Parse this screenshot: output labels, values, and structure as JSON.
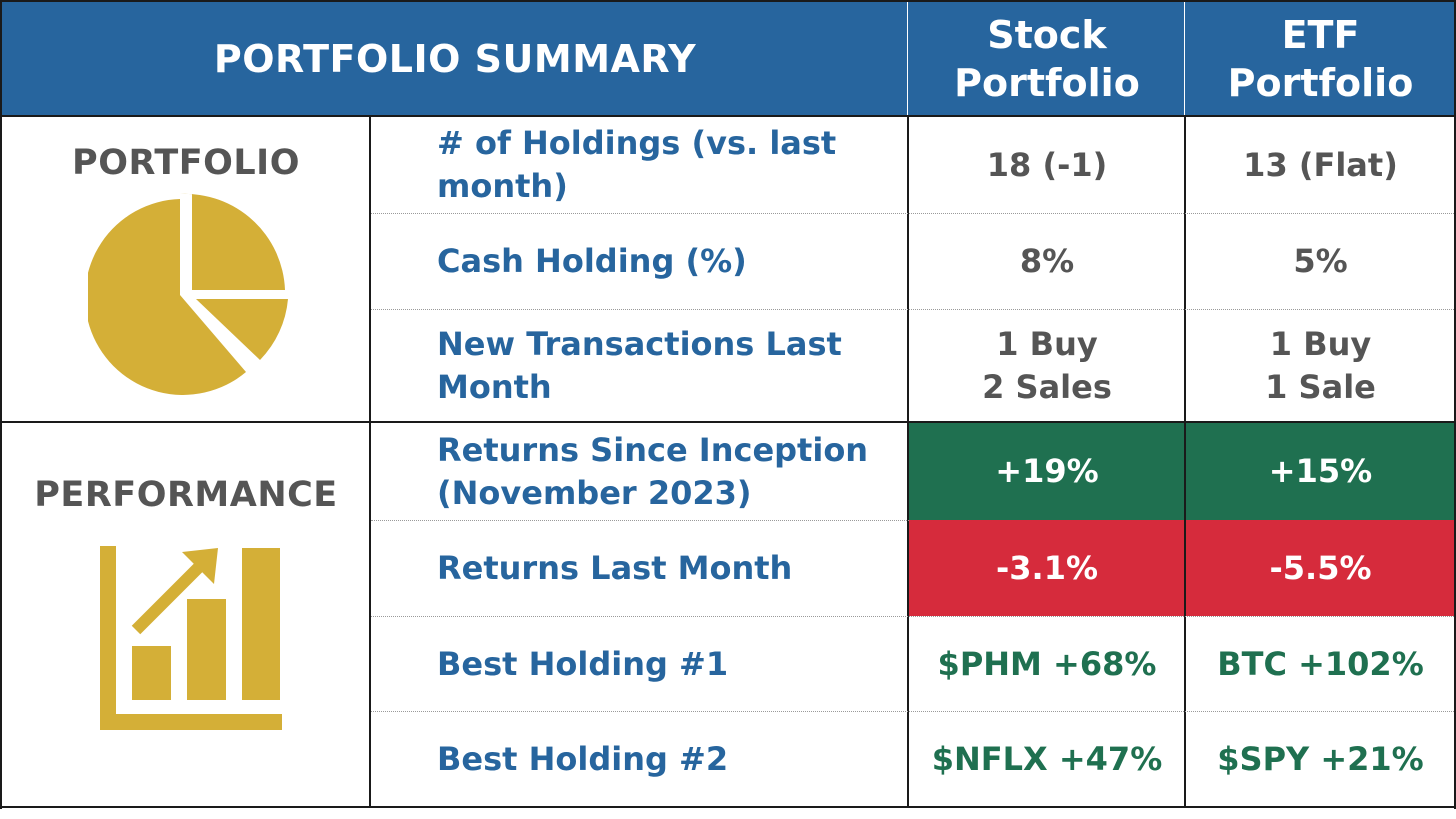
{
  "header": {
    "title": "PORTFOLIO SUMMARY",
    "col_stock": "Stock\nPortfolio",
    "col_etf": "ETF\nPortfolio"
  },
  "sections": {
    "portfolio": "PORTFOLIO",
    "performance": "PERFORMANCE"
  },
  "rows": [
    {
      "label": "# of Holdings (vs. last month)",
      "stock": "18 (-1)",
      "etf": "13 (Flat)"
    },
    {
      "label": "Cash Holding (%)",
      "stock": "8%",
      "etf": "5%"
    },
    {
      "label": "New Transactions Last Month",
      "stock": "1 Buy\n2 Sales",
      "etf": "1 Buy\n1 Sale"
    },
    {
      "label": "Returns Since Inception (November 2023)",
      "stock": "+19%",
      "etf": "+15%"
    },
    {
      "label": "Returns Last Month",
      "stock": "-3.1%",
      "etf": "-5.5%"
    },
    {
      "label": "Best Holding #1",
      "stock": "$PHM +68%",
      "etf": "BTC +102%"
    },
    {
      "label": "Best Holding #2",
      "stock": "$NFLX +47%",
      "etf": "$SPY +21%"
    }
  ],
  "icons": {
    "portfolio": "pie-chart-icon",
    "performance": "growth-chart-icon"
  },
  "colors": {
    "header_blue": "#27659e",
    "label_blue": "#27659e",
    "gold": "#d4af37",
    "positive_green": "#1f7050",
    "negative_red": "#d62b3c",
    "neutral_gray": "#555555"
  }
}
